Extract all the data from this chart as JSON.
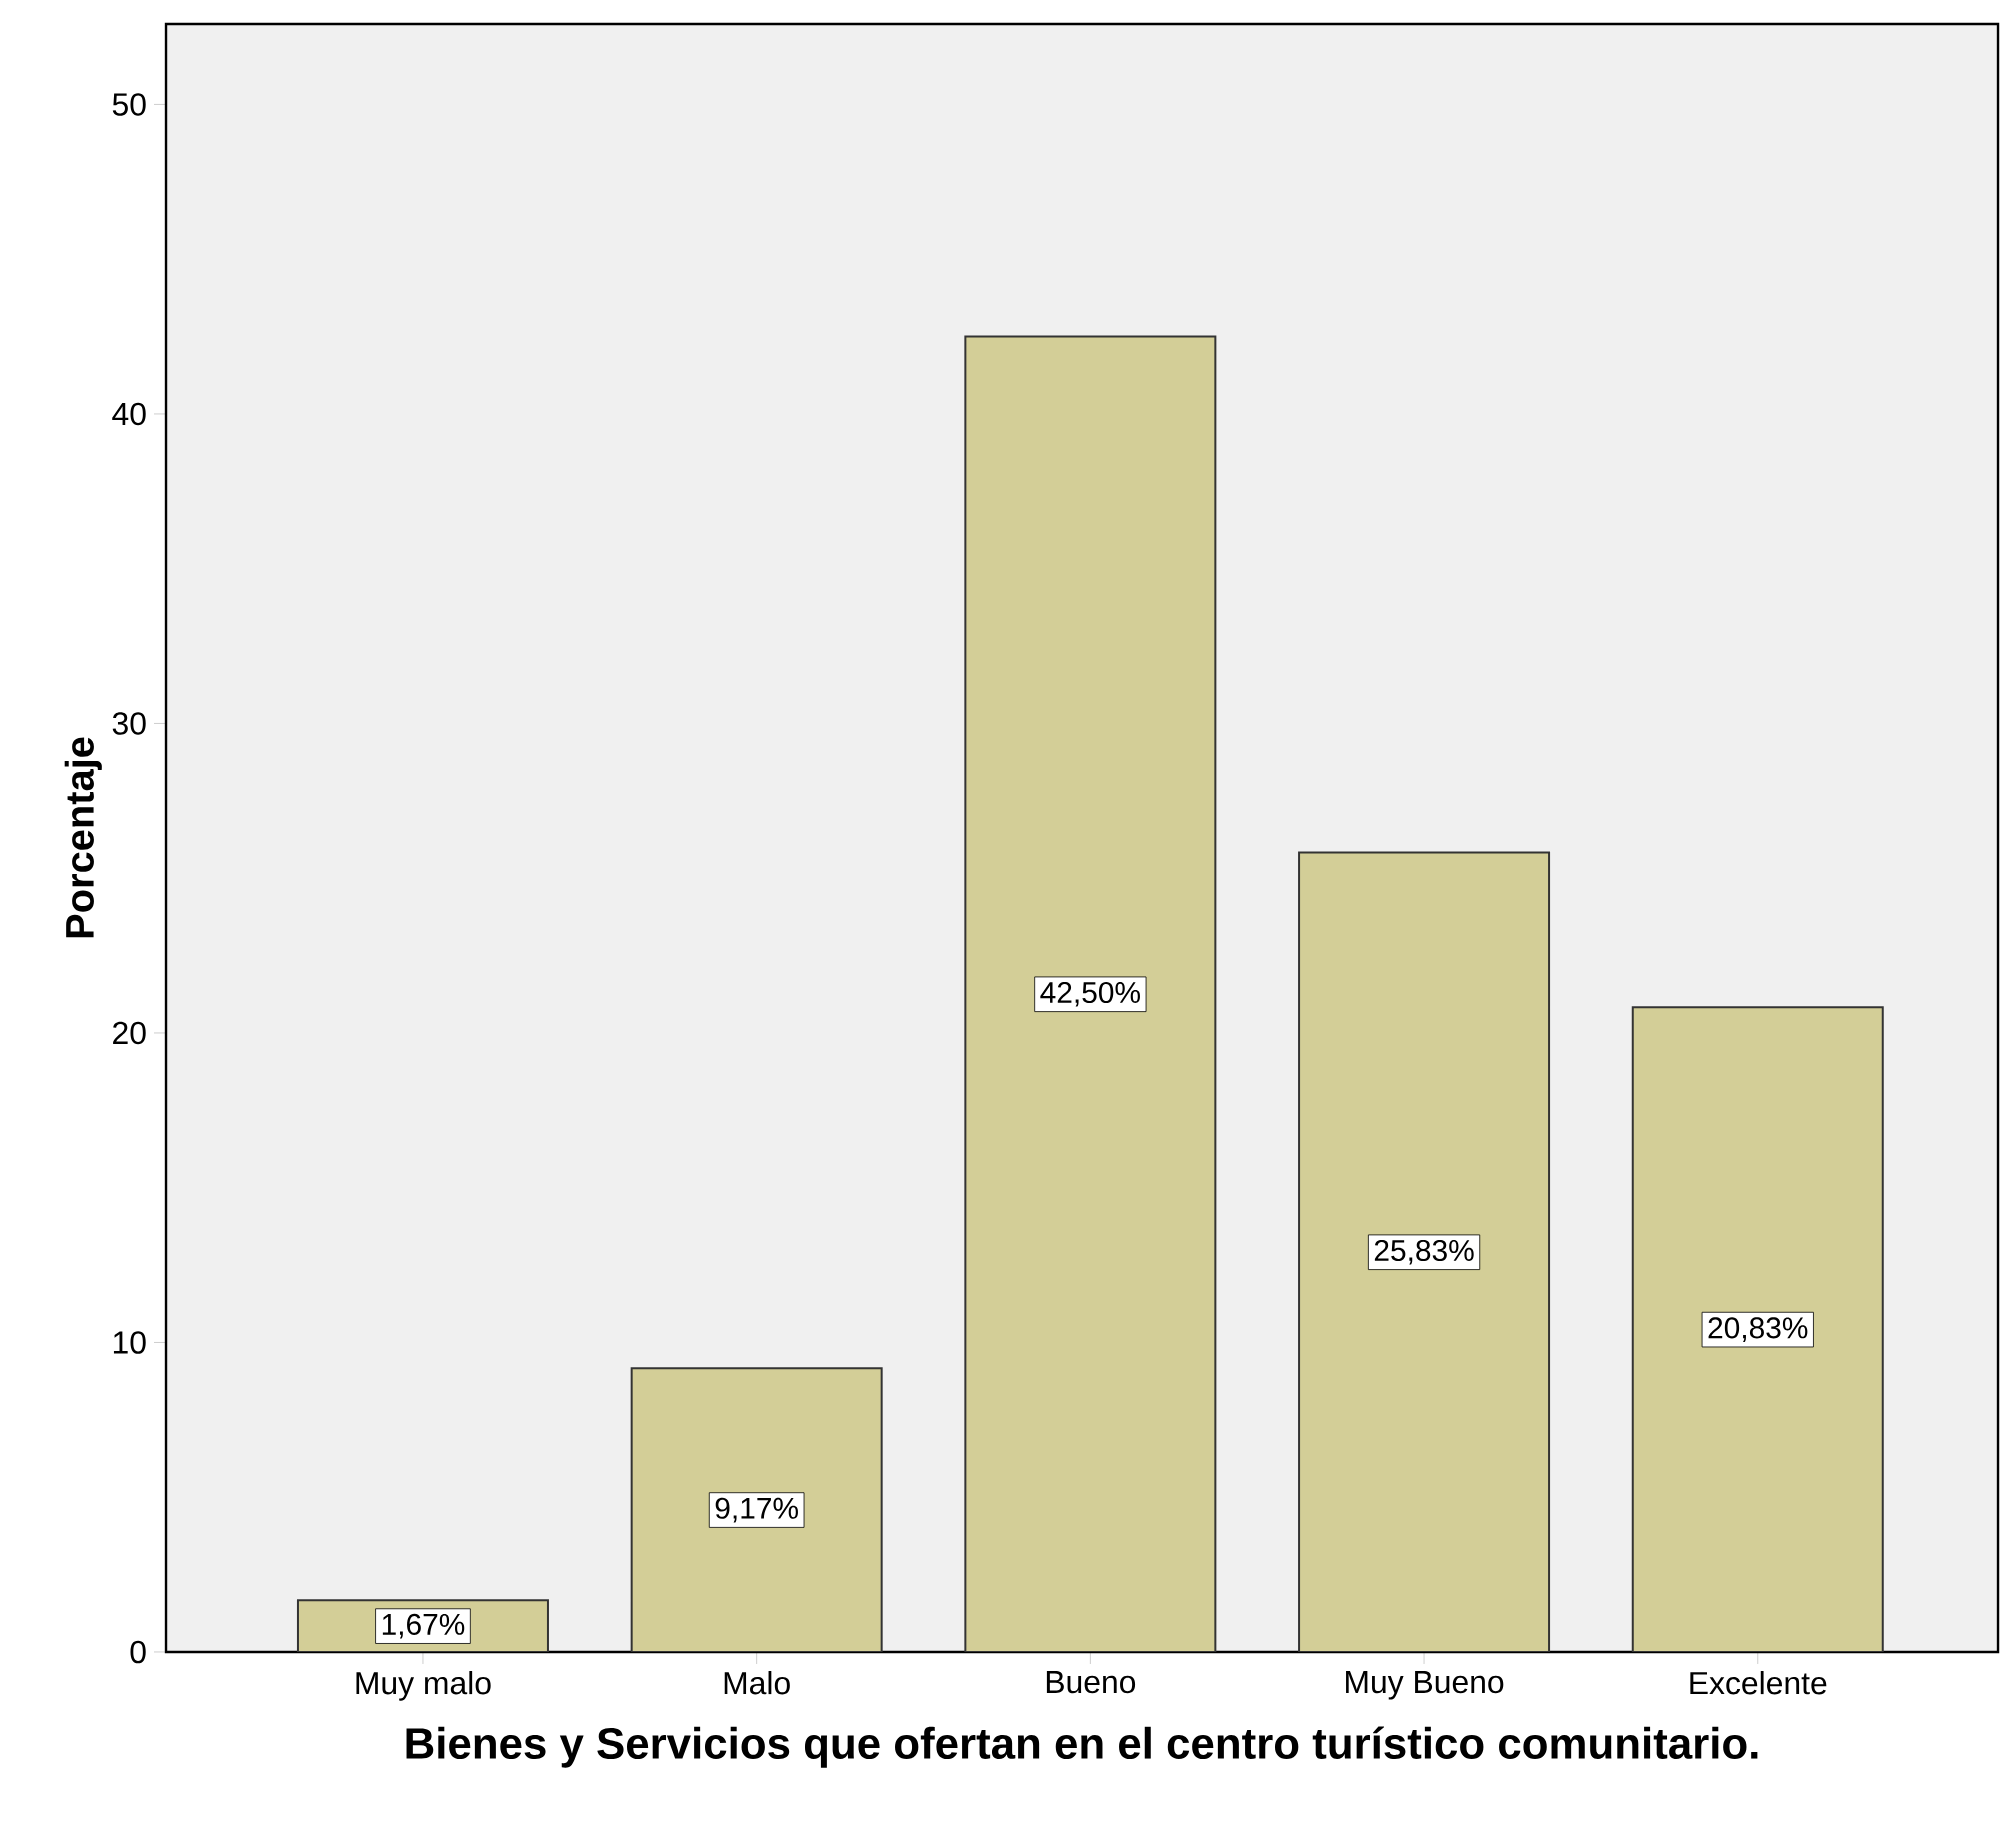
{
  "chart_data": {
    "type": "bar",
    "xlabel": "Bienes y Servicios que ofertan en el centro turístico comunitario.",
    "ylabel": "Porcentaje",
    "categories": [
      "Muy malo",
      "Malo",
      "Bueno",
      "Muy Bueno",
      "Excelente"
    ],
    "values": [
      1.67,
      9.17,
      42.5,
      25.83,
      20.83
    ],
    "value_labels": [
      "1,67%",
      "9,17%",
      "42,50%",
      "25,83%",
      "20,83%"
    ],
    "color": "#d3ce97",
    "ylim": [
      0,
      52.6
    ],
    "yticks": [
      0,
      10,
      20,
      30,
      40,
      50
    ],
    "grid": false
  }
}
